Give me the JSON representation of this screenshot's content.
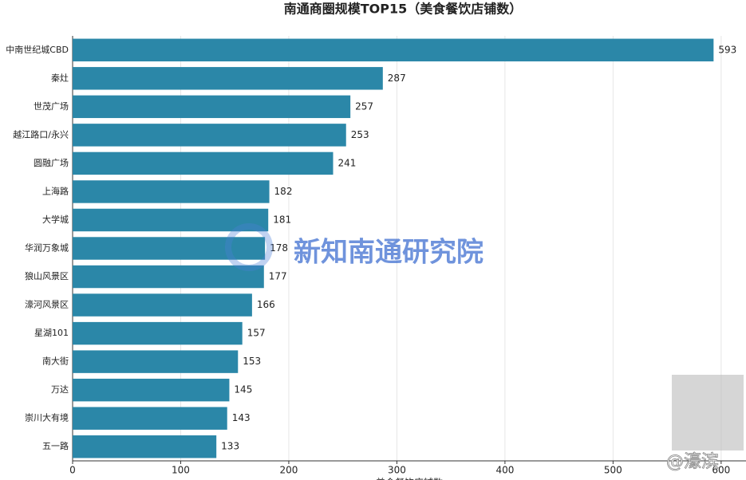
{
  "chart_data": {
    "type": "barh",
    "title": "南通商圈规模TOP15（美食餐饮店铺数）",
    "xlabel": "美食餐饮店铺数",
    "categories": [
      "中南世纪城CBD",
      "秦灶",
      "世茂广场",
      "越江路口/永兴",
      "圆融广场",
      "上海路",
      "大学城",
      "华润万象城",
      "狼山风景区",
      "濠河风景区",
      "星湖101",
      "南大街",
      "万达",
      "崇川大有境",
      "五一路"
    ],
    "values": [
      593,
      287,
      257,
      253,
      241,
      182,
      181,
      178,
      177,
      166,
      157,
      153,
      145,
      143,
      133
    ],
    "color": "#2b87a8",
    "xlim": [
      0,
      623
    ],
    "xticks": [
      0,
      100,
      200,
      300,
      400,
      500,
      600
    ],
    "grid": true,
    "annotations": [
      "新知南通研究院",
      "@濠滨"
    ]
  }
}
